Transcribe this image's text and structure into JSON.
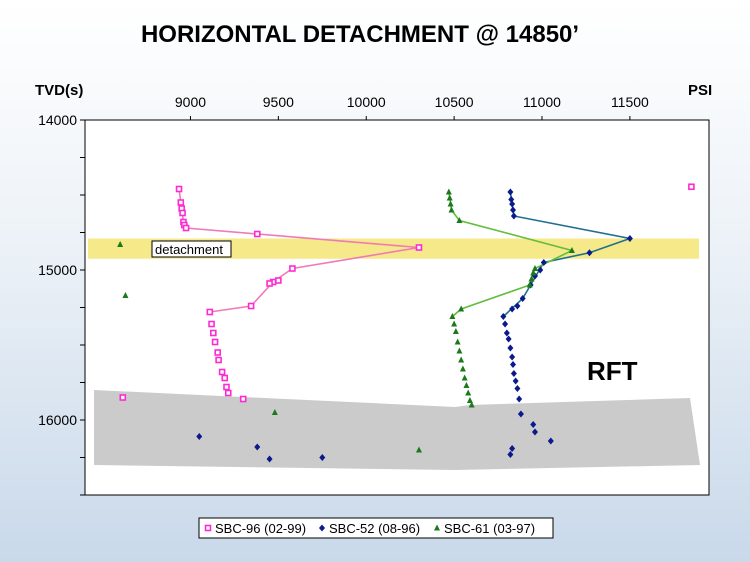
{
  "chart_data": {
    "type": "scatter",
    "title": "HORIZONTAL DETACHMENT @ 14850’",
    "ylabel": "TVD(s)",
    "xlabel": "PSI",
    "xlim": [
      8400,
      11950
    ],
    "ylim": [
      14000,
      16500
    ],
    "y_inverted": true,
    "x_ticks": [
      9000,
      9500,
      10000,
      10500,
      11000,
      11500
    ],
    "y_ticks": [
      14000,
      15000,
      16000
    ],
    "legend_position": "bottom",
    "annotations": [
      {
        "text": "detachment"
      },
      {
        "text": "RFT"
      }
    ],
    "detachment_band": {
      "y_top": 14790,
      "y_bottom": 14925,
      "color": "#f5e98a"
    },
    "series": [
      {
        "name": "SBC-96 (02-99)",
        "color": "#ff2ad2",
        "line_color": "#f07ab8",
        "marker": "square",
        "points": [
          {
            "x": 8935,
            "y": 14460
          },
          {
            "x": 8945,
            "y": 14550
          },
          {
            "x": 8950,
            "y": 14590
          },
          {
            "x": 8955,
            "y": 14620
          },
          {
            "x": 8960,
            "y": 14680
          },
          {
            "x": 8965,
            "y": 14700
          },
          {
            "x": 8975,
            "y": 14720
          },
          {
            "x": 9380,
            "y": 14760
          },
          {
            "x": 10300,
            "y": 14850
          },
          {
            "x": 9580,
            "y": 14990
          },
          {
            "x": 9500,
            "y": 15070
          },
          {
            "x": 9470,
            "y": 15080
          },
          {
            "x": 9450,
            "y": 15090
          },
          {
            "x": 9345,
            "y": 15240
          },
          {
            "x": 9110,
            "y": 15280
          },
          {
            "x": 9120,
            "y": 15360
          },
          {
            "x": 9130,
            "y": 15420
          },
          {
            "x": 9140,
            "y": 15480
          },
          {
            "x": 9155,
            "y": 15550
          },
          {
            "x": 9160,
            "y": 15600
          },
          {
            "x": 9180,
            "y": 15680
          },
          {
            "x": 9195,
            "y": 15720
          },
          {
            "x": 9205,
            "y": 15780
          },
          {
            "x": 9215,
            "y": 15820
          },
          {
            "x": 9300,
            "y": 15860
          },
          {
            "x": 8615,
            "y": 15850
          },
          {
            "x": 11850,
            "y": 14445
          }
        ],
        "line_points": [
          {
            "x": 8935,
            "y": 14460
          },
          {
            "x": 8960,
            "y": 14680
          },
          {
            "x": 8975,
            "y": 14720
          },
          {
            "x": 10300,
            "y": 14850
          },
          {
            "x": 9580,
            "y": 14990
          },
          {
            "x": 9470,
            "y": 15080
          },
          {
            "x": 9345,
            "y": 15240
          },
          {
            "x": 9110,
            "y": 15280
          }
        ]
      },
      {
        "name": "SBC-52 (08-96)",
        "color": "#0a1a8c",
        "line_color": "#1f6f8f",
        "marker": "diamond",
        "points": [
          {
            "x": 10820,
            "y": 14480
          },
          {
            "x": 10825,
            "y": 14530
          },
          {
            "x": 10830,
            "y": 14560
          },
          {
            "x": 10835,
            "y": 14600
          },
          {
            "x": 10840,
            "y": 14640
          },
          {
            "x": 11500,
            "y": 14790
          },
          {
            "x": 11270,
            "y": 14885
          },
          {
            "x": 11010,
            "y": 14950
          },
          {
            "x": 10990,
            "y": 15000
          },
          {
            "x": 10960,
            "y": 15040
          },
          {
            "x": 10935,
            "y": 15100
          },
          {
            "x": 10890,
            "y": 15190
          },
          {
            "x": 10860,
            "y": 15240
          },
          {
            "x": 10830,
            "y": 15260
          },
          {
            "x": 10780,
            "y": 15310
          },
          {
            "x": 10790,
            "y": 15360
          },
          {
            "x": 10800,
            "y": 15420
          },
          {
            "x": 10810,
            "y": 15460
          },
          {
            "x": 10820,
            "y": 15520
          },
          {
            "x": 10830,
            "y": 15580
          },
          {
            "x": 10835,
            "y": 15630
          },
          {
            "x": 10840,
            "y": 15690
          },
          {
            "x": 10850,
            "y": 15740
          },
          {
            "x": 10860,
            "y": 15790
          },
          {
            "x": 10870,
            "y": 15860
          },
          {
            "x": 10880,
            "y": 15960
          },
          {
            "x": 10950,
            "y": 16030
          },
          {
            "x": 10960,
            "y": 16080
          },
          {
            "x": 11050,
            "y": 16140
          },
          {
            "x": 10830,
            "y": 16190
          },
          {
            "x": 10820,
            "y": 16230
          },
          {
            "x": 9050,
            "y": 16110
          },
          {
            "x": 9380,
            "y": 16180
          },
          {
            "x": 9450,
            "y": 16260
          },
          {
            "x": 9750,
            "y": 16250
          }
        ],
        "line_points": [
          {
            "x": 10820,
            "y": 14480
          },
          {
            "x": 10840,
            "y": 14640
          },
          {
            "x": 11500,
            "y": 14790
          },
          {
            "x": 11270,
            "y": 14885
          },
          {
            "x": 11010,
            "y": 14950
          },
          {
            "x": 10890,
            "y": 15190
          },
          {
            "x": 10780,
            "y": 15310
          }
        ]
      },
      {
        "name": "SBC-61 (03-97)",
        "color": "#1a7a1a",
        "line_color": "#63bd3e",
        "marker": "triangle",
        "points": [
          {
            "x": 10470,
            "y": 14480
          },
          {
            "x": 10475,
            "y": 14520
          },
          {
            "x": 10480,
            "y": 14560
          },
          {
            "x": 10485,
            "y": 14600
          },
          {
            "x": 10530,
            "y": 14670
          },
          {
            "x": 11170,
            "y": 14870
          },
          {
            "x": 10960,
            "y": 14990
          },
          {
            "x": 10950,
            "y": 15020
          },
          {
            "x": 10940,
            "y": 15060
          },
          {
            "x": 10930,
            "y": 15100
          },
          {
            "x": 10540,
            "y": 15260
          },
          {
            "x": 10490,
            "y": 15310
          },
          {
            "x": 10500,
            "y": 15360
          },
          {
            "x": 10510,
            "y": 15410
          },
          {
            "x": 10520,
            "y": 15480
          },
          {
            "x": 10530,
            "y": 15540
          },
          {
            "x": 10540,
            "y": 15600
          },
          {
            "x": 10550,
            "y": 15660
          },
          {
            "x": 10560,
            "y": 15720
          },
          {
            "x": 10570,
            "y": 15770
          },
          {
            "x": 10580,
            "y": 15820
          },
          {
            "x": 10590,
            "y": 15870
          },
          {
            "x": 10600,
            "y": 15900
          },
          {
            "x": 8600,
            "y": 14830
          },
          {
            "x": 8630,
            "y": 15170
          },
          {
            "x": 9480,
            "y": 15950
          },
          {
            "x": 10300,
            "y": 16200
          }
        ],
        "line_points": [
          {
            "x": 10470,
            "y": 14480
          },
          {
            "x": 10485,
            "y": 14600
          },
          {
            "x": 10530,
            "y": 14670
          },
          {
            "x": 11170,
            "y": 14870
          },
          {
            "x": 10960,
            "y": 14990
          },
          {
            "x": 10930,
            "y": 15100
          },
          {
            "x": 10540,
            "y": 15260
          },
          {
            "x": 10490,
            "y": 15310
          }
        ]
      }
    ]
  }
}
